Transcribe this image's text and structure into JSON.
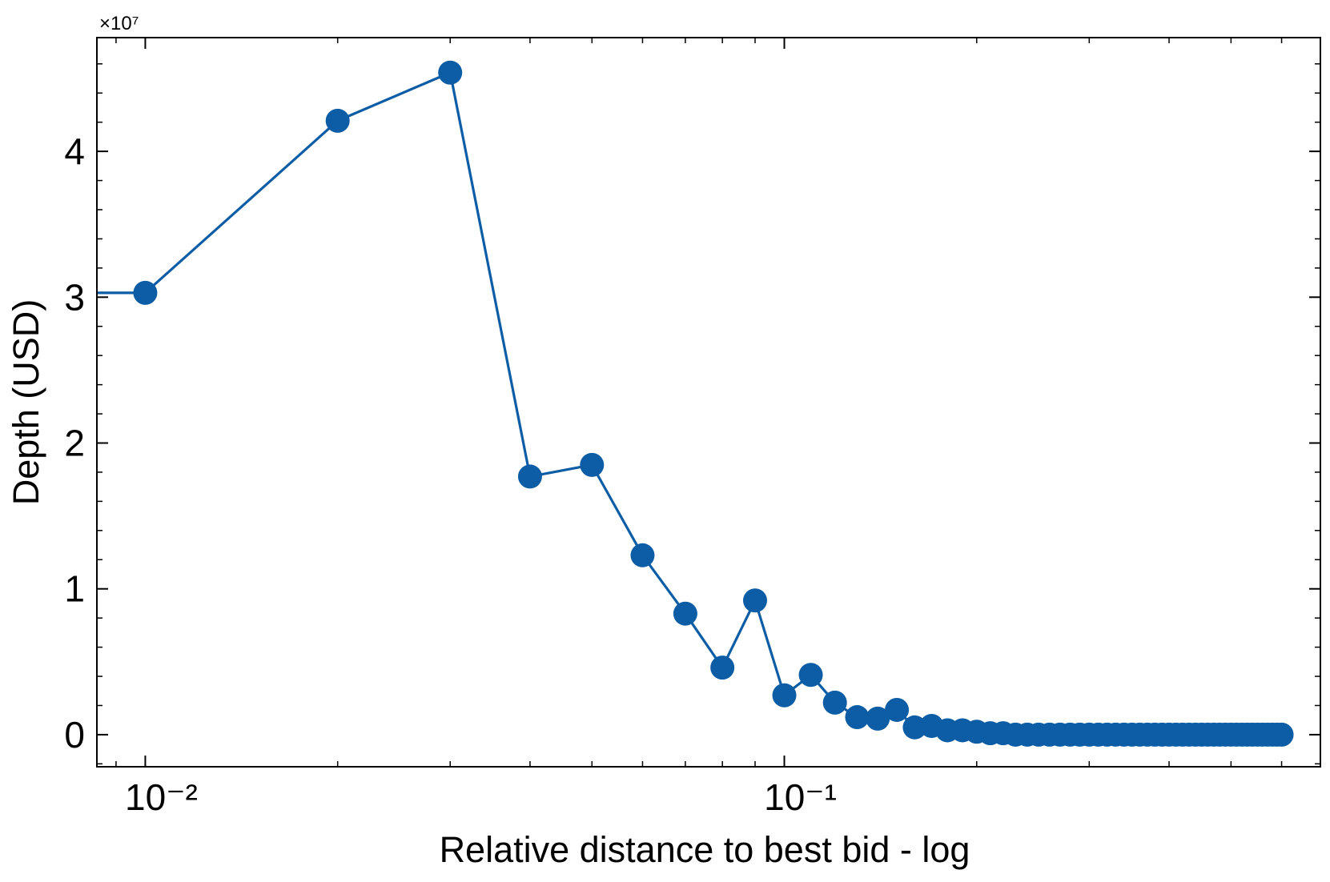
{
  "chart_data": {
    "type": "line",
    "title": "",
    "xlabel": "Relative distance to best bid - log",
    "ylabel": "Depth (USD)",
    "xscale": "log",
    "xlim": [
      0.0084,
      0.69
    ],
    "ylim": [
      -2200000,
      47800000
    ],
    "y_multiplier_label": "×10⁷",
    "x_ticks": [
      {
        "value": 0.01,
        "label": "10⁻²"
      },
      {
        "value": 0.1,
        "label": "10⁻¹"
      }
    ],
    "y_ticks": [
      {
        "value": 0,
        "label": "0"
      },
      {
        "value": 10000000,
        "label": "1"
      },
      {
        "value": 20000000,
        "label": "2"
      },
      {
        "value": 30000000,
        "label": "3"
      },
      {
        "value": 40000000,
        "label": "4"
      }
    ],
    "line_extends_left": true,
    "color": "#0C5DA5",
    "series": [
      {
        "name": "",
        "x": [
          0.01,
          0.02,
          0.03,
          0.04,
          0.05,
          0.06,
          0.07,
          0.08,
          0.09,
          0.1,
          0.11,
          0.12,
          0.13,
          0.14,
          0.15,
          0.16,
          0.17,
          0.18,
          0.19,
          0.2,
          0.21,
          0.22,
          0.23,
          0.24,
          0.25,
          0.26,
          0.27,
          0.28,
          0.29,
          0.3,
          0.31,
          0.32,
          0.33,
          0.34,
          0.35,
          0.36,
          0.37,
          0.38,
          0.39,
          0.4,
          0.41,
          0.42,
          0.43,
          0.44,
          0.45,
          0.46,
          0.47,
          0.48,
          0.49,
          0.5,
          0.51,
          0.52,
          0.53,
          0.54,
          0.55,
          0.56,
          0.57,
          0.58,
          0.59,
          0.6
        ],
        "values": [
          30300000,
          42100000,
          45400000,
          17700000,
          18500000,
          12300000,
          8300000,
          4600000,
          9200000,
          2700000,
          4100000,
          2200000,
          1200000,
          1100000,
          1700000,
          500000,
          600000,
          300000,
          300000,
          200000,
          100000,
          100000,
          0,
          0,
          0,
          0,
          0,
          0,
          0,
          0,
          0,
          0,
          0,
          0,
          0,
          0,
          0,
          0,
          0,
          0,
          0,
          0,
          0,
          0,
          0,
          0,
          0,
          0,
          0,
          0,
          0,
          0,
          0,
          0,
          0,
          0,
          0,
          0,
          0,
          0
        ]
      }
    ]
  }
}
